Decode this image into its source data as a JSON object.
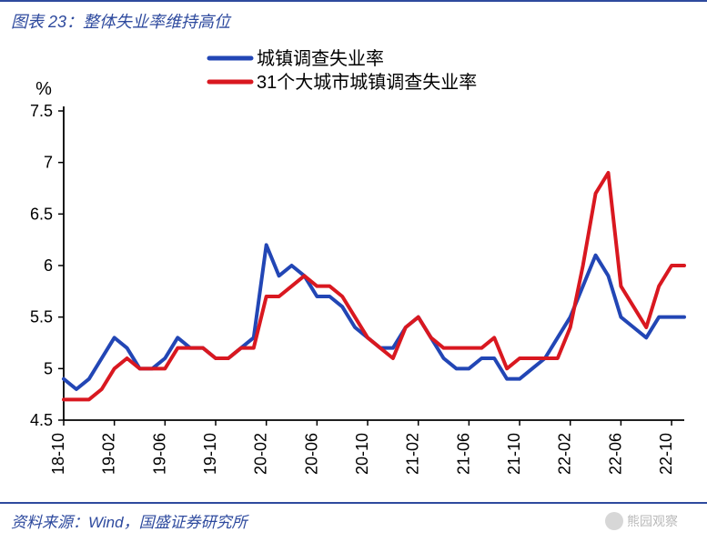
{
  "header": {
    "title": "图表 23：整体失业率维持高位"
  },
  "footer": {
    "source": "资料来源：Wind，国盛证券研究所",
    "watermark": "熊园观察"
  },
  "chart": {
    "type": "line",
    "y_unit": "%",
    "background_color": "#ffffff",
    "axis_color": "#000000",
    "tick_font_size": 18,
    "unit_font_size": 20,
    "legend_font_size": 20,
    "line_width": 4,
    "ylim": [
      4.5,
      7.5
    ],
    "ytick_step": 0.5,
    "yticks": [
      4.5,
      5,
      5.5,
      6,
      6.5,
      7,
      7.5
    ],
    "x_categories": [
      "18-10",
      "18-11",
      "18-12",
      "19-01",
      "19-02",
      "19-03",
      "19-04",
      "19-05",
      "19-06",
      "19-07",
      "19-08",
      "19-09",
      "19-10",
      "19-11",
      "19-12",
      "20-01",
      "20-02",
      "20-03",
      "20-04",
      "20-05",
      "20-06",
      "20-07",
      "20-08",
      "20-09",
      "20-10",
      "20-11",
      "20-12",
      "21-01",
      "21-02",
      "21-03",
      "21-04",
      "21-05",
      "21-06",
      "21-07",
      "21-08",
      "21-09",
      "21-10",
      "21-11",
      "21-12",
      "22-01",
      "22-02",
      "22-03",
      "22-04",
      "22-05",
      "22-06",
      "22-07",
      "22-08",
      "22-09",
      "22-10",
      "22-11"
    ],
    "x_tick_labels": [
      "18-10",
      "19-02",
      "19-06",
      "19-10",
      "20-02",
      "20-06",
      "20-10",
      "21-02",
      "21-06",
      "21-10",
      "22-02",
      "22-06",
      "22-10"
    ],
    "x_tick_every": 4,
    "series": [
      {
        "name": "城镇调查失业率",
        "color": "#2246b5",
        "values": [
          4.9,
          4.8,
          4.9,
          5.1,
          5.3,
          5.2,
          5.0,
          5.0,
          5.1,
          5.3,
          5.2,
          5.2,
          5.1,
          5.1,
          5.2,
          5.3,
          6.2,
          5.9,
          6.0,
          5.9,
          5.7,
          5.7,
          5.6,
          5.4,
          5.3,
          5.2,
          5.2,
          5.4,
          5.5,
          5.3,
          5.1,
          5.0,
          5.0,
          5.1,
          5.1,
          4.9,
          4.9,
          5.0,
          5.1,
          5.3,
          5.5,
          5.8,
          6.1,
          5.9,
          5.5,
          5.4,
          5.3,
          5.5,
          5.5,
          5.5
        ]
      },
      {
        "name": "31个大城市城镇调查失业率",
        "color": "#d91820",
        "values": [
          4.7,
          4.7,
          4.7,
          4.8,
          5.0,
          5.1,
          5.0,
          5.0,
          5.0,
          5.2,
          5.2,
          5.2,
          5.1,
          5.1,
          5.2,
          5.2,
          5.7,
          5.7,
          5.8,
          5.9,
          5.8,
          5.8,
          5.7,
          5.5,
          5.3,
          5.2,
          5.1,
          5.4,
          5.5,
          5.3,
          5.2,
          5.2,
          5.2,
          5.2,
          5.3,
          5.0,
          5.1,
          5.1,
          5.1,
          5.1,
          5.4,
          6.0,
          6.7,
          6.9,
          5.8,
          5.6,
          5.4,
          5.8,
          6.0,
          6.0
        ]
      }
    ],
    "legend": {
      "position": "top-center",
      "items": [
        {
          "label": "城镇调查失业率",
          "color": "#2246b5"
        },
        {
          "label": "31个大城市城镇调查失业率",
          "color": "#d91820"
        }
      ]
    }
  }
}
